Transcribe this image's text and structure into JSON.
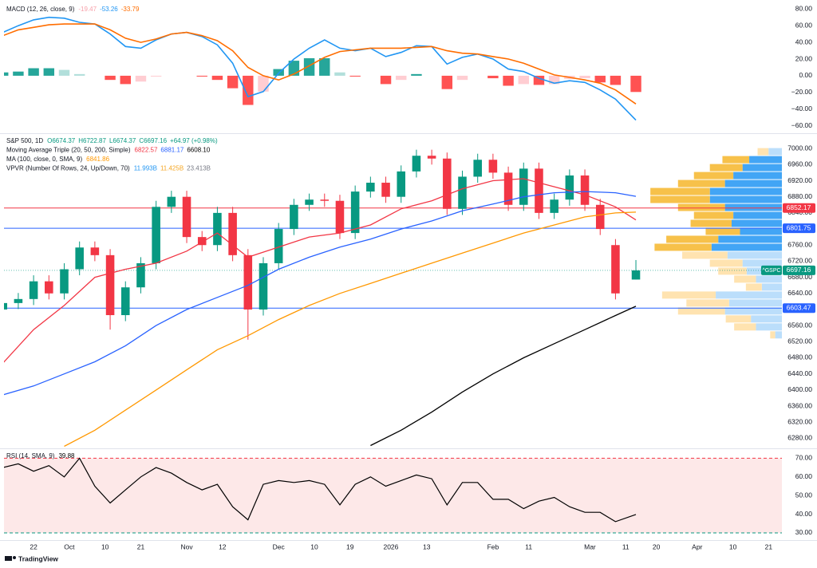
{
  "chart_data": [
    {
      "type": "macd",
      "legends": [
        {
          "title": "MACD (12, 26, close, 9)",
          "items": [
            {
              "text": "-19.47",
              "color": "#f7a1aa"
            },
            {
              "text": "-53.26",
              "color": "#2196f3"
            },
            {
              "text": "-33.79",
              "color": "#ff6d00"
            }
          ]
        }
      ],
      "xlim": [
        -5.8,
        146.6
      ],
      "ylim": [
        -67,
        86
      ],
      "yticks": [
        {
          "value": 80,
          "label": "80.00"
        },
        {
          "value": 60,
          "label": "60.00"
        },
        {
          "value": 40,
          "label": "40.00"
        },
        {
          "value": 20,
          "label": "20.00"
        },
        {
          "value": 0,
          "label": "0.00"
        },
        {
          "value": -20,
          "label": "−20.00"
        },
        {
          "value": -40,
          "label": "−40.00"
        },
        {
          "value": -60,
          "label": "−60.00"
        }
      ],
      "x": [
        -6,
        -3,
        0,
        3,
        6,
        9,
        12,
        15,
        18,
        21,
        24,
        27,
        30,
        33,
        36,
        39,
        42,
        45,
        48,
        51,
        54,
        57,
        60,
        63,
        66,
        69,
        72,
        75,
        78,
        81,
        84,
        87,
        90,
        93,
        96,
        99,
        102,
        105,
        108,
        111,
        114,
        118
      ],
      "histogram": [
        4,
        5,
        9,
        9,
        7,
        2,
        0,
        -5,
        -10,
        -7,
        -1,
        0,
        0,
        -1,
        -5,
        -15,
        -35,
        -19,
        8,
        18,
        21,
        21,
        4,
        -1,
        0,
        -10,
        -5,
        2,
        0,
        -16,
        -5,
        0,
        -3,
        -12,
        -10,
        -11,
        -10,
        -4,
        -3,
        -8,
        -11,
        -19.47
      ],
      "histogram_colors": [
        "#26a69a",
        "#b2dfdb",
        "#ff5252",
        "#ffcdd2"
      ],
      "series": [
        {
          "color": "#2196f3",
          "values": [
            52,
            60,
            67,
            70,
            69,
            64,
            62,
            50,
            35,
            33,
            43,
            50,
            52,
            47,
            37,
            15,
            -25,
            -19,
            3,
            20,
            33,
            43,
            33,
            30,
            33,
            23,
            28,
            36,
            35,
            14,
            22,
            26,
            20,
            8,
            5,
            -3,
            -9,
            -6,
            -8,
            -17,
            -28,
            -53.26
          ]
        },
        {
          "color": "#ff6d00",
          "values": [
            48,
            55,
            58,
            61,
            62,
            62,
            62,
            55,
            45,
            40,
            44,
            50,
            52,
            48,
            42,
            30,
            10,
            0,
            -5,
            2,
            12,
            22,
            29,
            31,
            33,
            33,
            33,
            34,
            35,
            30,
            27,
            26,
            23,
            20,
            15,
            8,
            1,
            -2,
            -5,
            -9,
            -17,
            -33.79
          ]
        }
      ]
    },
    {
      "type": "candlestick",
      "legends": [
        {
          "title": "S&P 500, 1D",
          "items": [
            {
              "text": "O6674.37",
              "color": "#089981"
            },
            {
              "text": "H6722.87",
              "color": "#089981"
            },
            {
              "text": "L6674.37",
              "color": "#089981"
            },
            {
              "text": "C6697.16",
              "color": "#089981"
            },
            {
              "text": "+64.97 (+0.98%)",
              "color": "#089981"
            }
          ]
        },
        {
          "title": "Moving Average Triple (20, 50, 200, Simple)",
          "items": [
            {
              "text": "6822.57",
              "color": "#f23645"
            },
            {
              "text": "6881.17",
              "color": "#2962ff"
            },
            {
              "text": "6608.10",
              "color": "#000000"
            }
          ]
        },
        {
          "title": "MA (100, close, 0, SMA, 9)",
          "items": [
            {
              "text": "6841.86",
              "color": "#ff9800"
            }
          ]
        },
        {
          "title": "VPVR (Number Of Rows, 24, Up/Down, 70)",
          "items": [
            {
              "text": "11.993B",
              "color": "#2196f3"
            },
            {
              "text": "11.425B",
              "color": "#f5a623"
            },
            {
              "text": "23.413B",
              "color": "#787b86"
            }
          ]
        }
      ],
      "xlim": [
        -5.8,
        146.6
      ],
      "ylim": [
        6259,
        7032
      ],
      "yticks": [
        {
          "value": 7000,
          "label": "7000.00"
        },
        {
          "value": 6960,
          "label": "6960.00"
        },
        {
          "value": 6920,
          "label": "6920.00"
        },
        {
          "value": 6880,
          "label": "6880.00"
        },
        {
          "value": 6840,
          "label": "6840.00"
        },
        {
          "value": 6800,
          "label": "6800.00"
        },
        {
          "value": 6760,
          "label": "6760.00"
        },
        {
          "value": 6720,
          "label": "6720.00"
        },
        {
          "value": 6680,
          "label": "6680.00"
        },
        {
          "value": 6640,
          "label": "6640.00"
        },
        {
          "value": 6600,
          "label": "6600.00"
        },
        {
          "value": 6560,
          "label": "6560.00"
        },
        {
          "value": 6520,
          "label": "6520.00"
        },
        {
          "value": 6480,
          "label": "6480.00"
        },
        {
          "value": 6440,
          "label": "6440.00"
        },
        {
          "value": 6400,
          "label": "6400.00"
        },
        {
          "value": 6360,
          "label": "6360.00"
        },
        {
          "value": 6320,
          "label": "6320.00"
        },
        {
          "value": 6280,
          "label": "6280.00"
        }
      ],
      "x": [
        -6,
        -3,
        0,
        3,
        6,
        9,
        12,
        15,
        18,
        21,
        24,
        27,
        30,
        33,
        36,
        39,
        42,
        45,
        48,
        51,
        54,
        57,
        60,
        63,
        66,
        69,
        72,
        75,
        78,
        81,
        84,
        87,
        90,
        93,
        96,
        99,
        102,
        105,
        108,
        111,
        114,
        118
      ],
      "open": [
        6600,
        6616,
        6626,
        6670,
        6640,
        6700,
        6754,
        6735,
        6586,
        6655,
        6715,
        6855,
        6880,
        6780,
        6760,
        6840,
        6735,
        6600,
        6715,
        6800,
        6860,
        6873,
        6870,
        6790,
        6893,
        6915,
        6880,
        6943,
        6982,
        6975,
        6850,
        6930,
        6972,
        6940,
        6860,
        6950,
        6840,
        6873,
        6933,
        6860,
        6760,
        6674.37
      ],
      "high": [
        6631,
        6641,
        6685,
        6685,
        6715,
        6769,
        6769,
        6750,
        6670,
        6730,
        6870,
        6895,
        6895,
        6795,
        6855,
        6855,
        6750,
        6730,
        6815,
        6875,
        6888,
        6888,
        6885,
        6908,
        6930,
        6930,
        6958,
        6997,
        6997,
        6990,
        6945,
        6987,
        6987,
        6955,
        6965,
        6965,
        6888,
        6948,
        6948,
        6875,
        6775,
        6722.87
      ],
      "low": [
        6585,
        6601,
        6611,
        6625,
        6625,
        6685,
        6720,
        6550,
        6571,
        6640,
        6700,
        6840,
        6765,
        6745,
        6745,
        6720,
        6525,
        6585,
        6700,
        6785,
        6845,
        6855,
        6775,
        6775,
        6878,
        6865,
        6865,
        6928,
        6960,
        6835,
        6835,
        6915,
        6925,
        6845,
        6845,
        6825,
        6825,
        6858,
        6845,
        6785,
        6625,
        6674.37
      ],
      "close": [
        6616,
        6626,
        6670,
        6640,
        6700,
        6754,
        6735,
        6586,
        6655,
        6715,
        6855,
        6880,
        6780,
        6760,
        6840,
        6735,
        6600,
        6715,
        6800,
        6860,
        6873,
        6870,
        6790,
        6893,
        6915,
        6880,
        6943,
        6982,
        6975,
        6850,
        6930,
        6972,
        6940,
        6860,
        6950,
        6840,
        6873,
        6933,
        6860,
        6800,
        6640,
        6697.16
      ],
      "up_color": "#089981",
      "down_color": "#f23645",
      "series": [
        {
          "color": "#f23645",
          "x": [
            -6,
            0,
            6,
            12,
            18,
            24,
            30,
            36,
            42,
            48,
            54,
            60,
            66,
            72,
            78,
            84,
            90,
            96,
            102,
            108,
            114,
            118
          ],
          "values": [
            6467,
            6550,
            6610,
            6680,
            6700,
            6715,
            6745,
            6790,
            6730,
            6755,
            6780,
            6790,
            6810,
            6850,
            6870,
            6900,
            6920,
            6925,
            6905,
            6885,
            6855,
            6822.57
          ]
        },
        {
          "color": "#2962ff",
          "x": [
            -6,
            0,
            6,
            12,
            18,
            24,
            30,
            36,
            42,
            48,
            54,
            60,
            66,
            72,
            78,
            84,
            90,
            96,
            102,
            108,
            114,
            118
          ],
          "values": [
            6388,
            6410,
            6440,
            6470,
            6510,
            6560,
            6600,
            6630,
            6660,
            6700,
            6730,
            6755,
            6775,
            6800,
            6820,
            6845,
            6862,
            6880,
            6890,
            6893,
            6890,
            6881.17
          ]
        },
        {
          "color": "#000000",
          "x": [
            -6,
            0,
            6,
            12,
            18,
            24,
            30,
            36,
            42,
            48,
            54,
            60,
            66,
            72,
            78,
            84,
            90,
            96,
            102,
            108,
            114,
            118
          ],
          "values": [
            null,
            null,
            null,
            null,
            null,
            null,
            null,
            null,
            null,
            null,
            null,
            null,
            6262,
            6300,
            6345,
            6395,
            6440,
            6480,
            6515,
            6550,
            6585,
            6608.1
          ]
        },
        {
          "color": "#ff9800",
          "x": [
            -6,
            0,
            6,
            12,
            18,
            24,
            30,
            36,
            42,
            48,
            54,
            60,
            66,
            72,
            78,
            84,
            90,
            96,
            102,
            108,
            114,
            118
          ],
          "values": [
            null,
            null,
            6260,
            6300,
            6350,
            6400,
            6450,
            6500,
            6535,
            6575,
            6610,
            6640,
            6665,
            6690,
            6715,
            6740,
            6765,
            6790,
            6810,
            6830,
            6840,
            6841.86
          ]
        }
      ],
      "volume_profile": {
        "range": [
          6527,
          7002
        ],
        "value_area": [
          6745,
          6982
        ],
        "up": [
          0.08,
          0.31,
          0.37,
          0.68,
          0.63,
          0.79,
          0.24,
          0.31,
          0.42,
          0.47,
          0.65,
          0.84,
          0.76,
          0.5,
          0.6,
          0.58,
          0.68,
          0.86,
          0.86,
          0.68,
          0.58,
          0.47,
          0.39,
          0.16
        ],
        "down": [
          0.06,
          0.26,
          0.3,
          0.56,
          0.51,
          0.64,
          0.19,
          0.26,
          0.34,
          0.39,
          0.54,
          0.68,
          0.62,
          0.41,
          0.49,
          0.47,
          0.56,
          0.71,
          0.71,
          0.56,
          0.47,
          0.39,
          0.32,
          0.13
        ],
        "colors": {
          "up": "#42a5f5",
          "down": "#f7c14a",
          "up_outside": "#bbdefb",
          "down_outside": "#ffe3b0"
        }
      },
      "price_lines": [
        {
          "value": 6852.17,
          "color": "#f23645"
        },
        {
          "value": 6801.75,
          "color": "#2962ff"
        },
        {
          "value": 6603.47,
          "color": "#2962ff"
        }
      ],
      "last_price": {
        "symbol": "^GSPC",
        "value": 6697.16,
        "color": "#089981"
      }
    },
    {
      "type": "line",
      "legends": [
        {
          "title": "RSI (14, SMA, 9)",
          "items": [
            {
              "text": "39.88",
              "color": "#000000"
            }
          ]
        }
      ],
      "xlim": [
        -5.8,
        146.6
      ],
      "ylim": [
        27,
        74
      ],
      "yticks": [
        {
          "value": 70,
          "label": "70.00"
        },
        {
          "value": 60,
          "label": "60.00"
        },
        {
          "value": 50,
          "label": "50.00"
        },
        {
          "value": 40,
          "label": "40.00"
        },
        {
          "value": 30,
          "label": "30.00"
        }
      ],
      "xticks": [
        {
          "value": 0,
          "label": "22"
        },
        {
          "value": 7,
          "label": "Oct"
        },
        {
          "value": 14,
          "label": "10"
        },
        {
          "value": 21,
          "label": "21"
        },
        {
          "value": 30,
          "label": "Nov"
        },
        {
          "value": 37,
          "label": "12"
        },
        {
          "value": 48,
          "label": "Dec"
        },
        {
          "value": 55,
          "label": "10"
        },
        {
          "value": 62,
          "label": "19"
        },
        {
          "value": 70,
          "label": "2026"
        },
        {
          "value": 77,
          "label": "13"
        },
        {
          "value": 90,
          "label": "Feb"
        },
        {
          "value": 97,
          "label": "11"
        },
        {
          "value": 109,
          "label": "Mar"
        },
        {
          "value": 116,
          "label": "11"
        },
        {
          "value": 122,
          "label": "20"
        },
        {
          "value": 130,
          "label": "Apr"
        },
        {
          "value": 137,
          "label": "10"
        },
        {
          "value": 144,
          "label": "21"
        }
      ],
      "x": [
        -6,
        -3,
        0,
        3,
        6,
        9,
        12,
        15,
        18,
        21,
        24,
        27,
        30,
        33,
        36,
        39,
        42,
        45,
        48,
        51,
        54,
        57,
        60,
        63,
        66,
        69,
        72,
        75,
        78,
        81,
        84,
        87,
        90,
        93,
        96,
        99,
        102,
        105,
        108,
        111,
        114,
        118
      ],
      "values": [
        65,
        67,
        63,
        66,
        60,
        70,
        55,
        46,
        53,
        60,
        65,
        62,
        57,
        53,
        56,
        44,
        37,
        56,
        58,
        57,
        58,
        56,
        45,
        56,
        60,
        55,
        58,
        61,
        59,
        45,
        57,
        57,
        48,
        48,
        43,
        47,
        49,
        44,
        41,
        41,
        36,
        39.88
      ],
      "color": "#000000",
      "bands": [
        {
          "value": 70,
          "color": "#f23645"
        },
        {
          "value": 30,
          "color": "#089981"
        }
      ],
      "band_fill": "#fde8e8"
    }
  ],
  "footer": {
    "brand": "TradingView"
  }
}
